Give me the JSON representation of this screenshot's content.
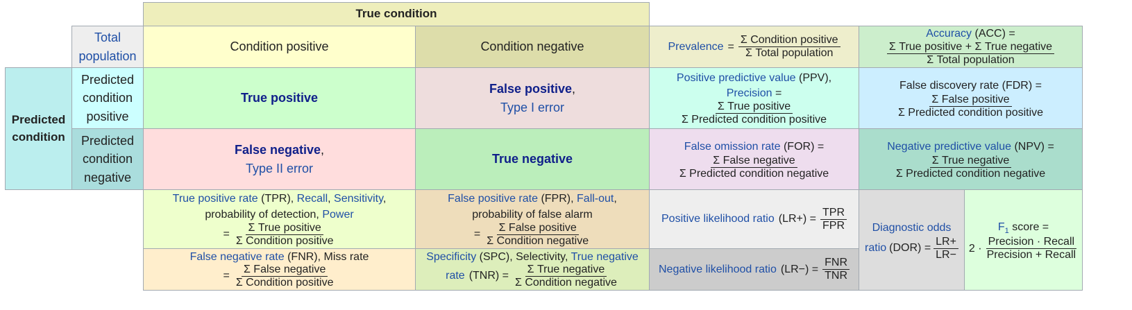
{
  "header": {
    "true_condition": "True condition",
    "total_population": "Total population",
    "condition_positive": "Condition positive",
    "condition_negative": "Condition negative",
    "predicted_condition": "Predicted condition",
    "predicted_condition_positive": "Predicted condition positive",
    "predicted_condition_negative": "Predicted condition negative"
  },
  "prevalence": {
    "label": "Prevalence",
    "eq": "=",
    "num": "Σ Condition positive",
    "den": "Σ Total population"
  },
  "accuracy": {
    "label": "Accuracy",
    "abbr": "(ACC) =",
    "num": "Σ True positive + Σ True negative",
    "den": "Σ Total population"
  },
  "tp": {
    "label": "True positive"
  },
  "fp": {
    "label": "False positive",
    "comma": ",",
    "type": "Type I error"
  },
  "fn": {
    "label": "False negative",
    "comma": ",",
    "type": "Type II error"
  },
  "tn": {
    "label": "True negative"
  },
  "ppv": {
    "label": "Positive predictive value",
    "abbr": "(PPV),",
    "label2": "Precision",
    "eq": "=",
    "num": "Σ True positive",
    "den": "Σ Predicted condition positive"
  },
  "fdr": {
    "label": "False discovery rate (FDR) =",
    "num": "Σ False positive",
    "den": "Σ Predicted condition positive"
  },
  "for": {
    "label": "False omission rate",
    "abbr": "(FOR) =",
    "num": "Σ False negative",
    "den": "Σ Predicted condition negative"
  },
  "npv": {
    "label": "Negative predictive value",
    "abbr": "(NPV) =",
    "num": "Σ True negative",
    "den": "Σ Predicted condition negative"
  },
  "tpr": {
    "label": "True positive rate",
    "abbr": "(TPR),",
    "recall": "Recall",
    "sep": ",",
    "sensitivity": "Sensitivity",
    "sep2": ",",
    "line2": "probability of detection,",
    "power": "Power",
    "eq": "=",
    "num": "Σ True positive",
    "den": "Σ Condition positive"
  },
  "fpr": {
    "label": "False positive rate",
    "abbr": "(FPR),",
    "fallout": "Fall-out",
    "sep": ",",
    "line2": "probability of false alarm",
    "eq": "=",
    "num": "Σ False positive",
    "den": "Σ Condition negative"
  },
  "fnr": {
    "label": "False negative rate",
    "abbr": "(FNR), Miss rate",
    "eq": "=",
    "num": "Σ False negative",
    "den": "Σ Condition positive"
  },
  "spc": {
    "label": "Specificity",
    "abbr": "(SPC), Selectivity,",
    "label2": "True negative",
    "line2": "rate",
    "abbr2": "(TNR) =",
    "num": "Σ True negative",
    "den": "Σ Condition negative"
  },
  "lrp": {
    "label": "Positive likelihood ratio",
    "abbr": "(LR+) =",
    "num": "TPR",
    "den": "FPR"
  },
  "lrn": {
    "label": "Negative likelihood ratio",
    "abbr": "(LR−) =",
    "num": "FNR",
    "den": "TNR"
  },
  "dor": {
    "label": "Diagnostic odds",
    "label2": "ratio",
    "abbr": "(DOR) =",
    "num": "LR+",
    "den": "LR−"
  },
  "f1": {
    "label": "F",
    "sub": "1",
    "label2": "score =",
    "prefix": "2 ·",
    "num": "Precision · Recall",
    "den": "Precision + Recall"
  },
  "colors": {
    "true_condition": "#eeeebb",
    "condition_positive": "#ffffcc",
    "condition_negative": "#ddddaa",
    "predicted_condition": "#bbeeee",
    "pred_positive": "#ccffff",
    "pred_negative": "#aadddd",
    "tp": "#ccffcc",
    "fp": "#eedddd",
    "fn": "#ffdddd",
    "tn": "#bbeebb",
    "prevalence": "#eeeecc",
    "accuracy": "#cceecc",
    "ppv": "#ccffee",
    "fdr": "#cceeff",
    "for": "#eeddee",
    "npv": "#aaddcc",
    "tpr": "#eeffcc",
    "fpr": "#eeddbb",
    "fnr": "#ffeecc",
    "spc": "#ddeebb",
    "lrp": "#eeeeee",
    "lrn": "#cccccc",
    "dor": "#dddddd",
    "f1": "#ddffdd"
  }
}
